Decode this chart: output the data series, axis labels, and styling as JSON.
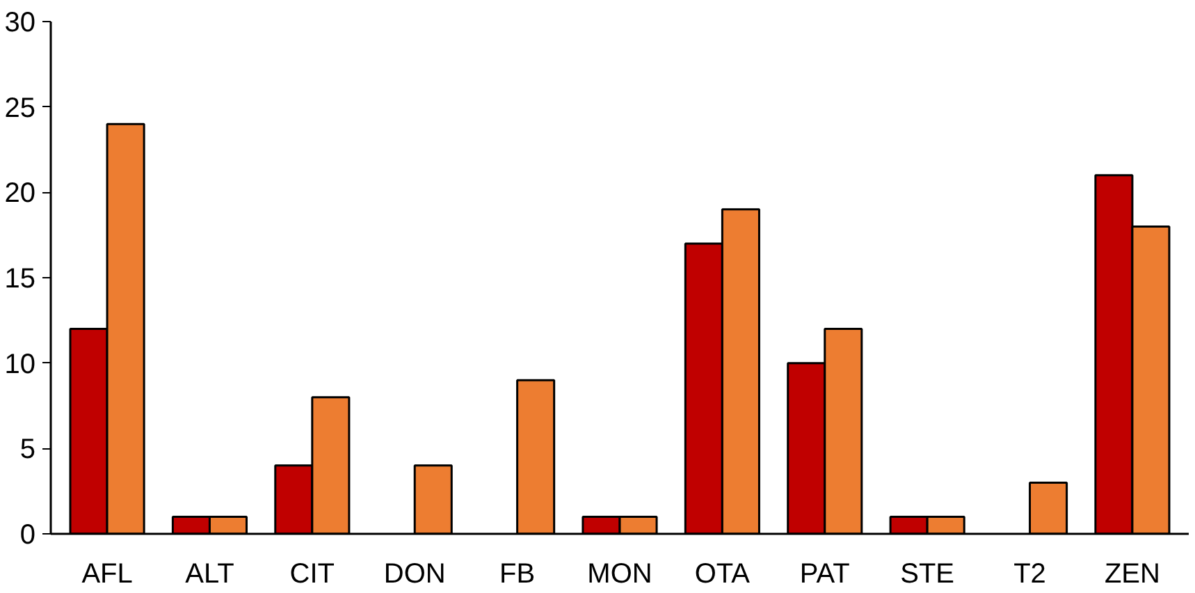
{
  "chart_data": {
    "type": "bar",
    "categories": [
      "AFL",
      "ALT",
      "CIT",
      "DON",
      "FB",
      "MON",
      "OTA",
      "PAT",
      "STE",
      "T2",
      "ZEN"
    ],
    "series": [
      {
        "color": "#c00000",
        "values": [
          12,
          1,
          4,
          null,
          null,
          1,
          17,
          10,
          1,
          null,
          21
        ]
      },
      {
        "color": "#ed7d31",
        "values": [
          24,
          1,
          8,
          4,
          9,
          1,
          19,
          12,
          1,
          3,
          18
        ]
      }
    ],
    "ylim": [
      0,
      30
    ],
    "yticks": [
      0,
      5,
      10,
      15,
      20,
      25,
      30
    ],
    "grid": false
  }
}
